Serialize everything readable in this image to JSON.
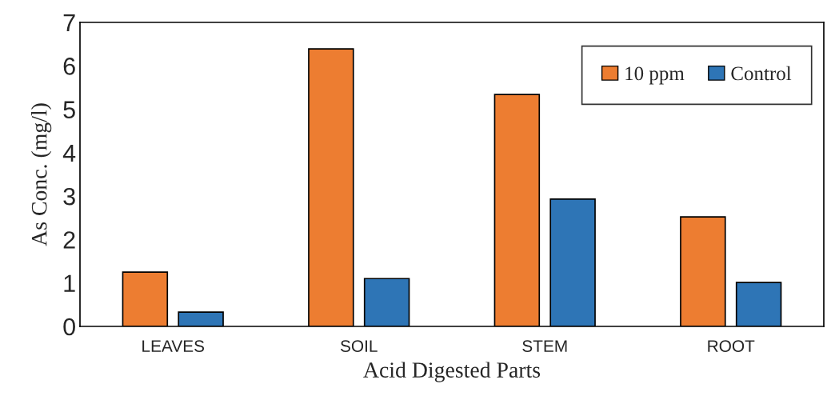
{
  "chart_data": {
    "type": "bar",
    "xlabel": "Acid Digested Parts",
    "ylabel": "As Conc. (mg/l)",
    "categories": [
      "LEAVES",
      "SOIL",
      "STEM",
      "ROOT"
    ],
    "series": [
      {
        "name": "10 ppm",
        "color": "#ed7d31",
        "values": [
          1.25,
          6.39,
          5.34,
          2.52
        ]
      },
      {
        "name": "Control",
        "color": "#2e75b6",
        "values": [
          0.33,
          1.1,
          2.93,
          1.01
        ]
      }
    ],
    "ylim": [
      0,
      7
    ],
    "yticks": [
      0,
      1,
      2,
      3,
      4,
      5,
      6,
      7
    ],
    "grid": false,
    "legend": "top right"
  }
}
